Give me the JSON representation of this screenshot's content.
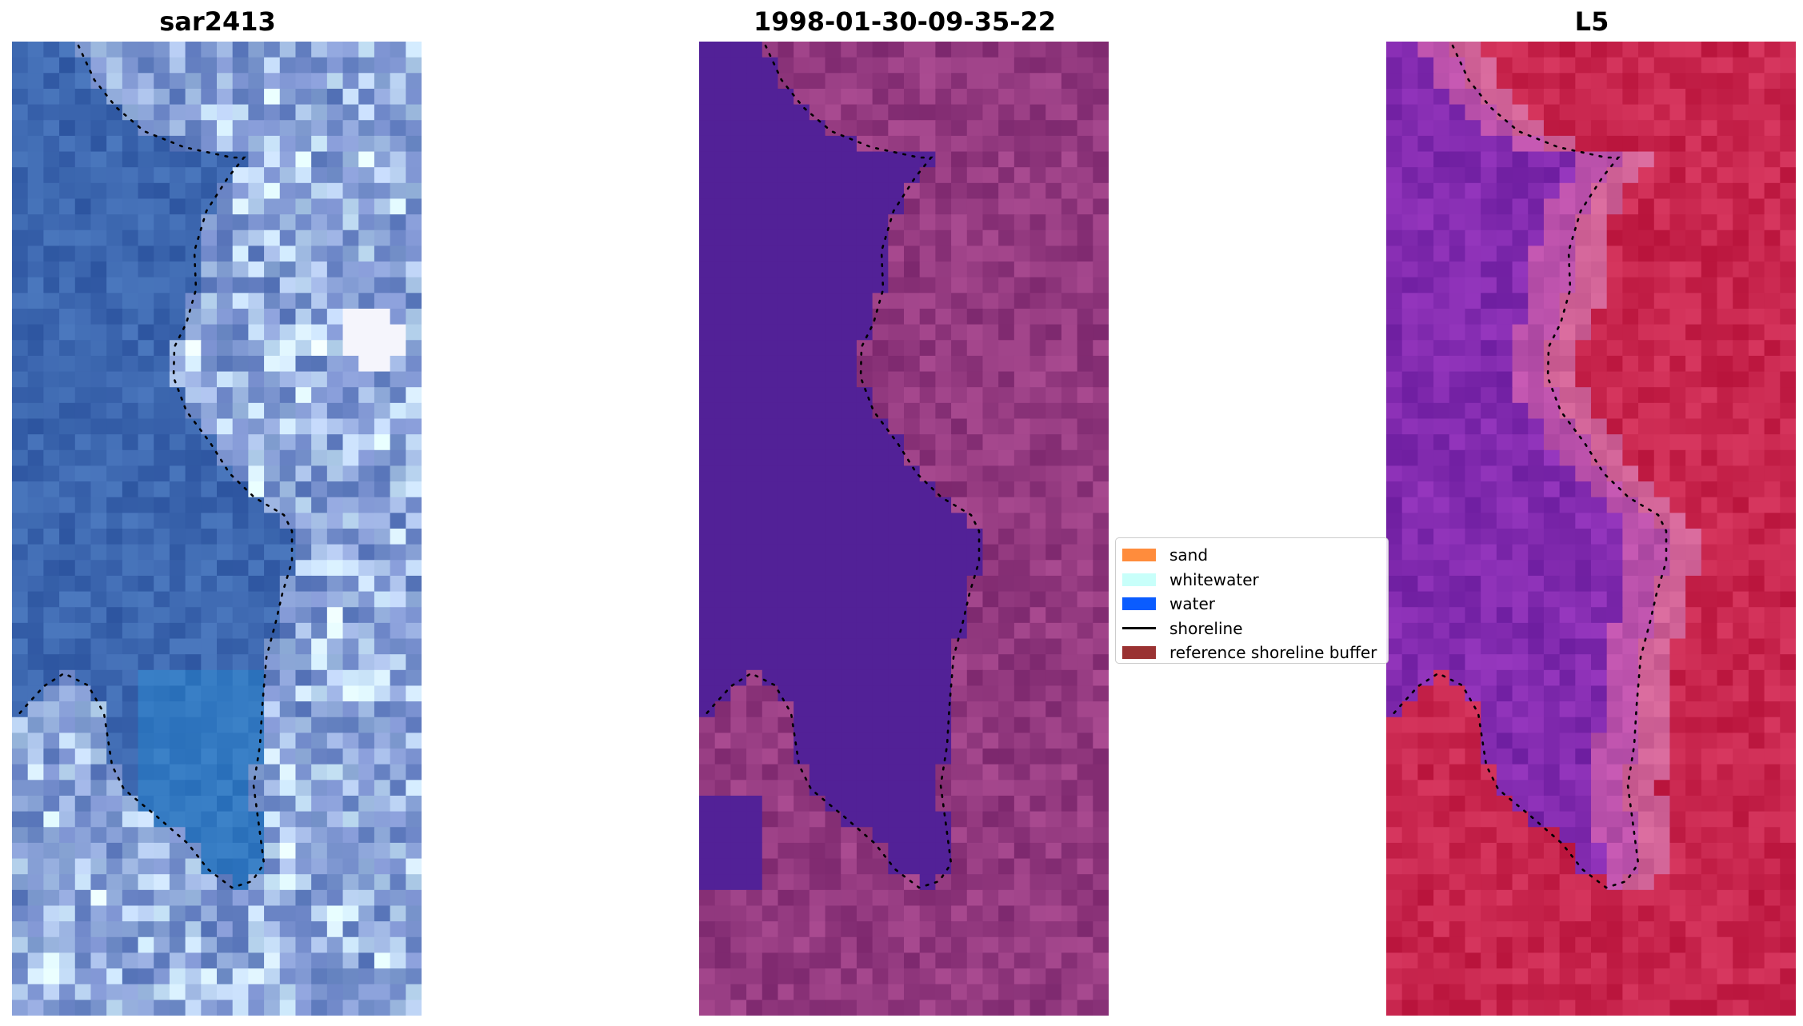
{
  "panels": [
    {
      "id": "sar",
      "title": "sar2413"
    },
    {
      "id": "class",
      "title": "1998-01-30-09-35-22"
    },
    {
      "id": "l5",
      "title": "L5"
    }
  ],
  "legend": {
    "items": [
      {
        "label": "sand",
        "color": "#ff8c3c",
        "kind": "patch"
      },
      {
        "label": "whitewater",
        "color": "#c8fffa",
        "kind": "patch"
      },
      {
        "label": "water",
        "color": "#0a5cff",
        "kind": "patch"
      },
      {
        "label": "shoreline",
        "color": "#000000",
        "kind": "line"
      },
      {
        "label": "reference shoreline buffer",
        "color": "#9a3232",
        "kind": "patch"
      }
    ]
  }
}
